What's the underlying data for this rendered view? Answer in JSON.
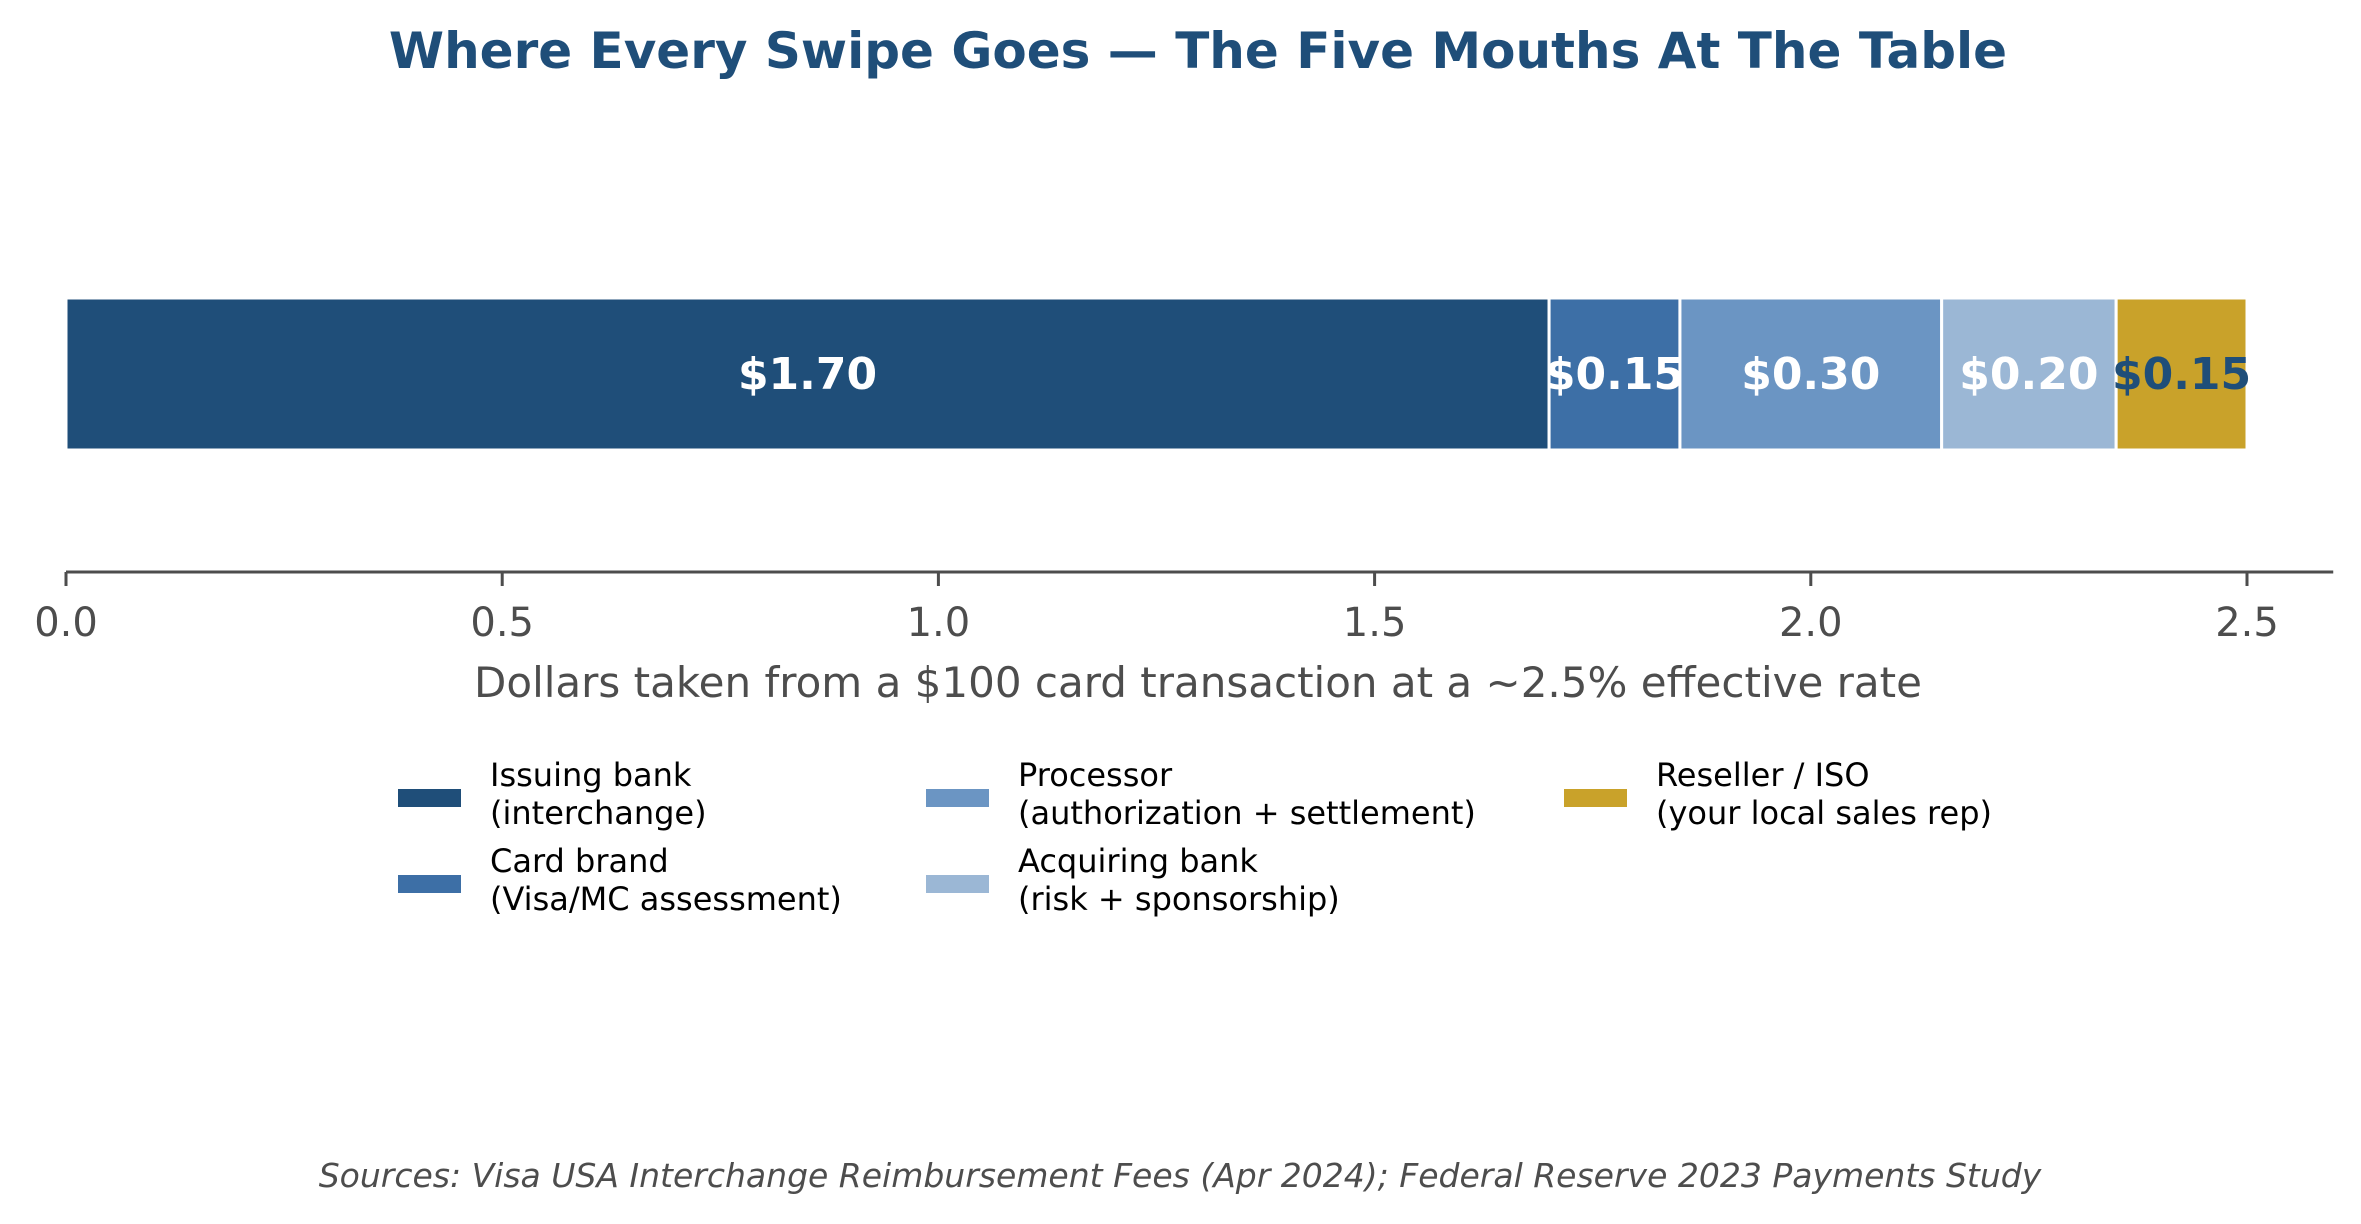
{
  "colors": {
    "title": "#1f4e79",
    "axis": "#4d4d4d",
    "text": "#4d4d4d",
    "legend_text": "#000000",
    "segment_border": "#ffffff"
  },
  "chart_data": {
    "type": "bar",
    "orientation": "horizontal",
    "stacked": true,
    "title": "Where Every Swipe Goes — The Five Mouths At The Table",
    "xlabel": "Dollars taken from a $100 card transaction at a ~2.5% effective rate",
    "ylabel": "",
    "xlim": [
      0,
      2.6
    ],
    "xticks": [
      0.0,
      0.5,
      1.0,
      1.5,
      2.0,
      2.5
    ],
    "xtick_labels": [
      "0.0",
      "0.5",
      "1.0",
      "1.5",
      "2.0",
      "2.5"
    ],
    "grid": false,
    "legend_position": "bottom-center",
    "legend_columns": 3,
    "segments": [
      {
        "name": "Issuing bank\n(interchange)",
        "legend_lines": [
          "Issuing bank",
          "(interchange)"
        ],
        "value": 1.7,
        "label": "$1.70",
        "color": "#1f4e79",
        "label_color": "#ffffff"
      },
      {
        "name": "Card brand\n(Visa/MC assessment)",
        "legend_lines": [
          "Card brand",
          "(Visa/MC assessment)"
        ],
        "value": 0.15,
        "label": "$0.15",
        "color": "#3d6fa6",
        "label_color": "#ffffff"
      },
      {
        "name": "Processor\n(authorization + settlement)",
        "legend_lines": [
          "Processor",
          "(authorization + settlement)"
        ],
        "value": 0.3,
        "label": "$0.30",
        "color": "#6b95c3",
        "label_color": "#ffffff"
      },
      {
        "name": "Acquiring bank\n(risk + sponsorship)",
        "legend_lines": [
          "Acquiring bank",
          "(risk + sponsorship)"
        ],
        "value": 0.2,
        "label": "$0.20",
        "color": "#9bb7d5",
        "label_color": "#ffffff"
      },
      {
        "name": "Reseller / ISO\n(your local sales rep)",
        "legend_lines": [
          "Reseller / ISO",
          "(your local sales rep)"
        ],
        "value": 0.15,
        "label": "$0.15",
        "color": "#c9a22a",
        "label_color": "#1f4e79"
      }
    ],
    "source": "Sources: Visa USA Interchange Reimbursement Fees (Apr 2024); Federal Reserve 2023 Payments Study"
  }
}
